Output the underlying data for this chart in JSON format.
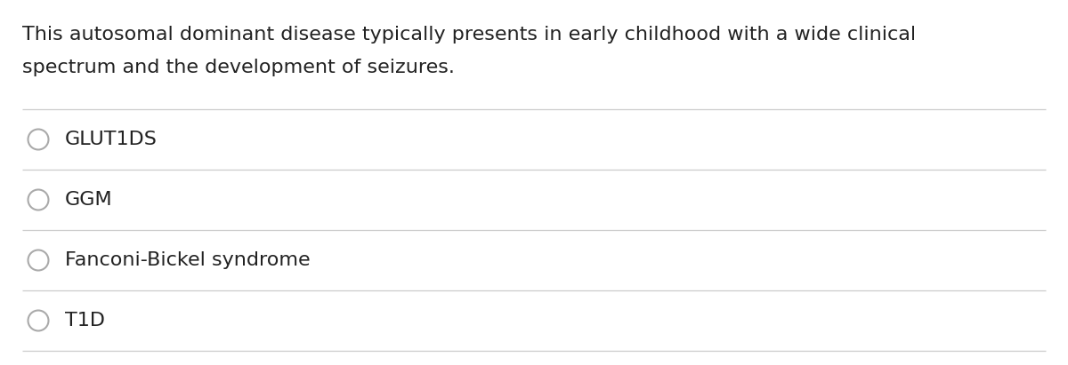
{
  "question_line1": "This autosomal dominant disease typically presents in early childhood with a wide clinical",
  "question_line2": "spectrum and the development of seizures.",
  "options": [
    "GLUT1DS",
    "GGM",
    "Fanconi-Bickel syndrome",
    "T1D"
  ],
  "background_color": "#ffffff",
  "text_color": "#222222",
  "line_color": "#cccccc",
  "circle_color": "#aaaaaa",
  "question_fontsize": 16,
  "option_fontsize": 16,
  "figwidth": 12.0,
  "figheight": 4.11
}
